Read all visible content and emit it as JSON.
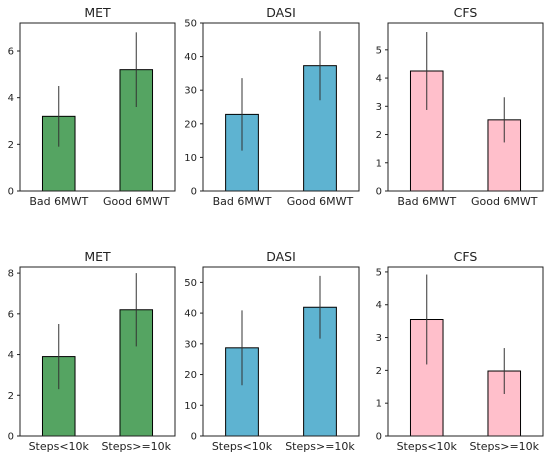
{
  "chart_data": [
    {
      "type": "bar",
      "title": "MET",
      "categories": [
        "Bad 6MWT",
        "Good 6MWT"
      ],
      "values": [
        3.2,
        5.2
      ],
      "errors": [
        1.3,
        1.6
      ],
      "ylim": [
        0,
        7.2
      ],
      "yticks": [
        0,
        2,
        4,
        6
      ],
      "color": "#55a462"
    },
    {
      "type": "bar",
      "title": "DASI",
      "categories": [
        "Bad 6MWT",
        "Good 6MWT"
      ],
      "values": [
        22.8,
        37.3
      ],
      "errors": [
        10.8,
        10.3
      ],
      "ylim": [
        0,
        50
      ],
      "yticks": [
        0,
        10,
        20,
        30,
        40,
        50
      ],
      "color": "#5eb3d1"
    },
    {
      "type": "bar",
      "title": "CFS",
      "categories": [
        "Bad 6MWT",
        "Good 6MWT"
      ],
      "values": [
        4.25,
        2.52
      ],
      "errors": [
        1.38,
        0.8
      ],
      "ylim": [
        0,
        5.95
      ],
      "yticks": [
        0,
        1,
        2,
        3,
        4,
        5
      ],
      "color": "#ffbfcb"
    },
    {
      "type": "bar",
      "title": "MET",
      "categories": [
        "Steps<10k",
        "Steps>=10k"
      ],
      "values": [
        3.9,
        6.2
      ],
      "errors": [
        1.6,
        1.8
      ],
      "ylim": [
        0,
        8.3
      ],
      "yticks": [
        0,
        2,
        4,
        6,
        8
      ],
      "color": "#55a462"
    },
    {
      "type": "bar",
      "title": "DASI",
      "categories": [
        "Steps<10k",
        "Steps>=10k"
      ],
      "values": [
        28.7,
        41.9
      ],
      "errors": [
        12.2,
        10.2
      ],
      "ylim": [
        0,
        55
      ],
      "yticks": [
        0,
        10,
        20,
        30,
        40,
        50
      ],
      "color": "#5eb3d1"
    },
    {
      "type": "bar",
      "title": "CFS",
      "categories": [
        "Steps<10k",
        "Steps>=10k"
      ],
      "values": [
        3.55,
        1.98
      ],
      "errors": [
        1.37,
        0.7
      ],
      "ylim": [
        0,
        5.15
      ],
      "yticks": [
        0,
        1,
        2,
        3,
        4,
        5
      ],
      "color": "#ffbfcb"
    }
  ]
}
